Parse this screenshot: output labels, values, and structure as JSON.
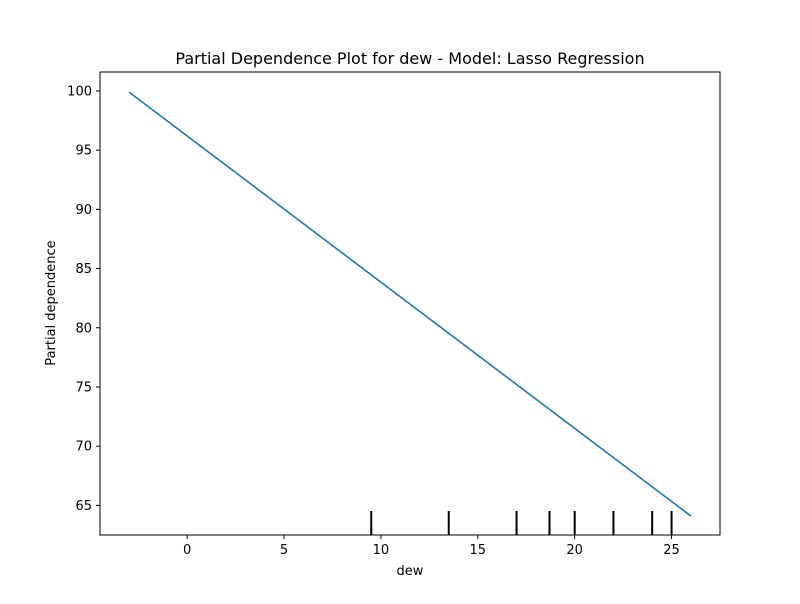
{
  "chart_data": {
    "type": "line",
    "title": "Partial Dependence Plot for dew - Model: Lasso Regression",
    "xlabel": "dew",
    "ylabel": "Partial dependence",
    "xlim": [
      -4.5,
      27.5
    ],
    "ylim": [
      62.5,
      101.6
    ],
    "xticks": [
      0,
      5,
      10,
      15,
      20,
      25
    ],
    "yticks": [
      65,
      70,
      75,
      80,
      85,
      90,
      95,
      100
    ],
    "grid": false,
    "series": [
      {
        "x": [
          -3.0,
          26.0
        ],
        "y": [
          99.9,
          64.1
        ]
      }
    ],
    "rug": [
      9.5,
      13.5,
      17.0,
      18.7,
      20.0,
      22.0,
      24.0,
      25.0
    ],
    "colors": {
      "line": "#1f77b4",
      "rug": "#000000",
      "axes": "#000000"
    }
  }
}
